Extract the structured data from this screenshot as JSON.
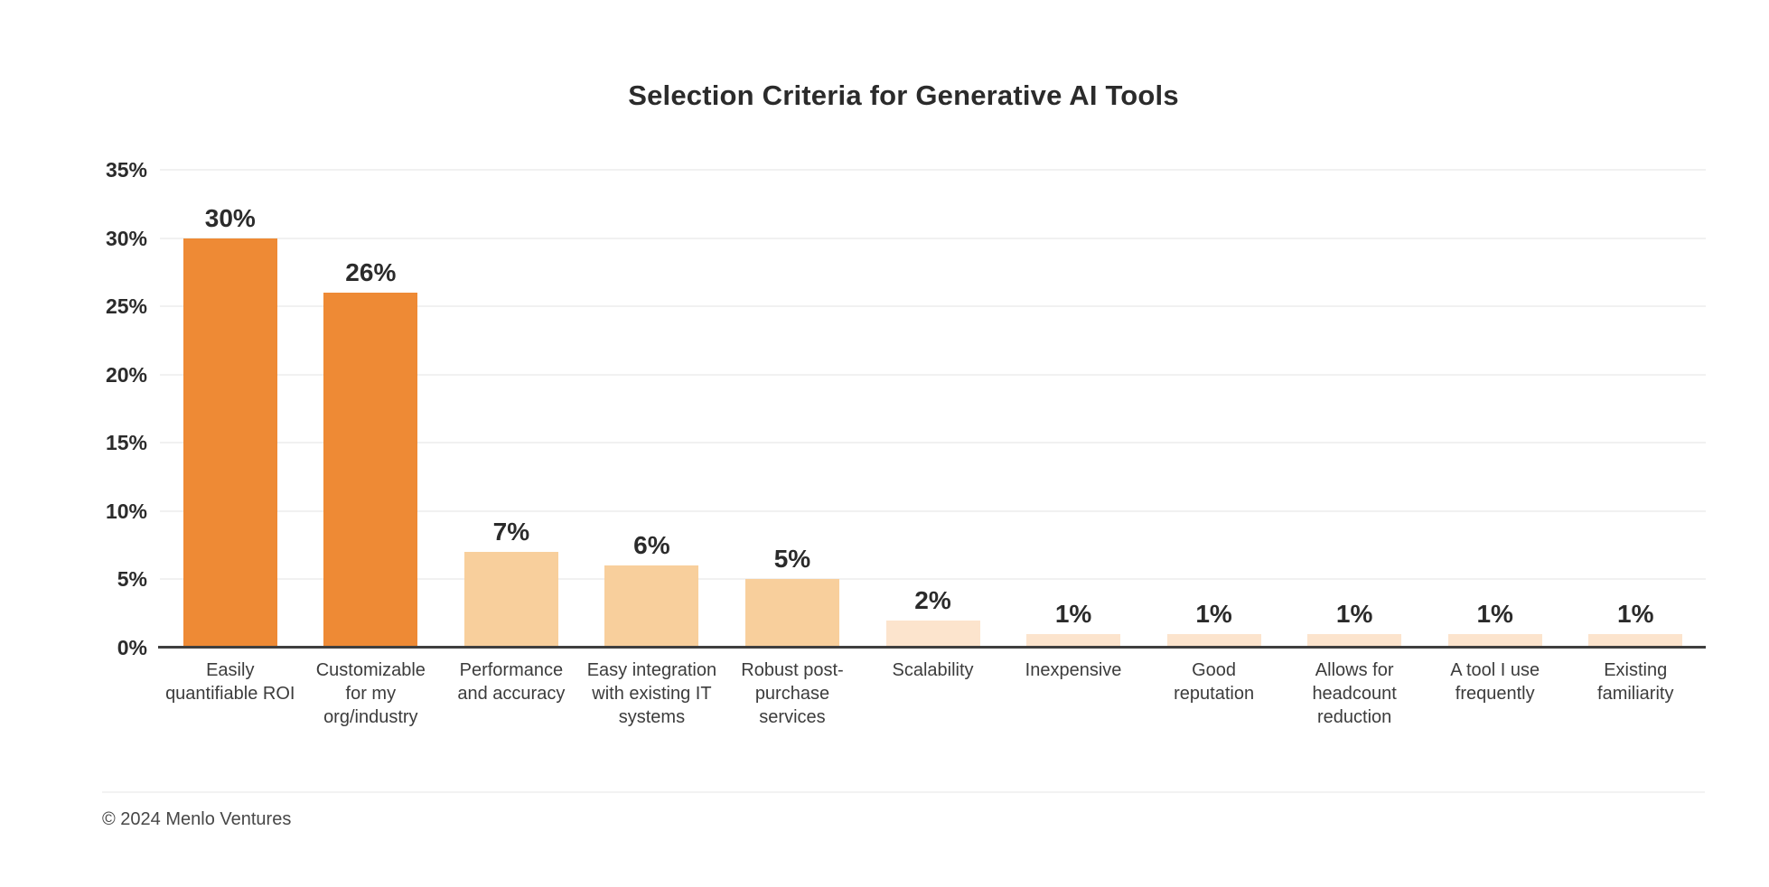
{
  "page": {
    "background": "#ffffff"
  },
  "header": {
    "title": "Selection Criteria for Generative AI Tools"
  },
  "chart_data": {
    "type": "bar",
    "title": "Selection Criteria for Generative AI Tools",
    "categories": [
      "Easily quantifiable ROI",
      "Customizable for my org/industry",
      "Performance and accuracy",
      "Easy integration with existing IT systems",
      "Robust post-purchase services",
      "Scalability",
      "Inexpensive",
      "Good reputation",
      "Allows for headcount reduction",
      "A tool I use frequently",
      "Existing familiarity"
    ],
    "category_lines": [
      [
        "Easily",
        "quantifiable ROI"
      ],
      [
        "Customizable",
        "for my",
        "org/industry"
      ],
      [
        "Performance",
        "and accuracy"
      ],
      [
        "Easy integration",
        "with existing IT",
        "systems"
      ],
      [
        "Robust post-",
        "purchase",
        "services"
      ],
      [
        "Scalability"
      ],
      [
        "Inexpensive"
      ],
      [
        "Good",
        "reputation"
      ],
      [
        "Allows for",
        "headcount",
        "reduction"
      ],
      [
        "A tool I use",
        "frequently"
      ],
      [
        "Existing",
        "familiarity"
      ]
    ],
    "values": [
      30,
      26,
      7,
      6,
      5,
      2,
      1,
      1,
      1,
      1,
      1
    ],
    "value_labels": [
      "30%",
      "26%",
      "7%",
      "6%",
      "5%",
      "2%",
      "1%",
      "1%",
      "1%",
      "1%",
      "1%"
    ],
    "bar_colors": [
      "#ee8a35",
      "#ee8a35",
      "#f8cf9c",
      "#f8cf9c",
      "#f8cf9c",
      "#fce4cd",
      "#fce4cd",
      "#fce4cd",
      "#fce4cd",
      "#fce4cd",
      "#fce4cd"
    ],
    "xlabel": "",
    "ylabel": "",
    "ylim": [
      0,
      35
    ],
    "ytick_values": [
      35,
      30,
      25,
      20,
      15,
      10,
      5,
      0
    ],
    "ytick_labels": [
      "35%",
      "30%",
      "25%",
      "20%",
      "15%",
      "10%",
      "5%",
      "0%"
    ],
    "grid": true,
    "legend": "none",
    "colors": {
      "bar_high": "#ee8a35",
      "bar_mid": "#f8cf9c",
      "bar_low": "#fce4cd",
      "gridline": "#f1f1f1",
      "axis_line": "#3f3f3f",
      "text_dark": "#2b2b2b",
      "text_label": "#3c3c3c"
    }
  },
  "footer": {
    "copyright": "© 2024 Menlo Ventures"
  }
}
